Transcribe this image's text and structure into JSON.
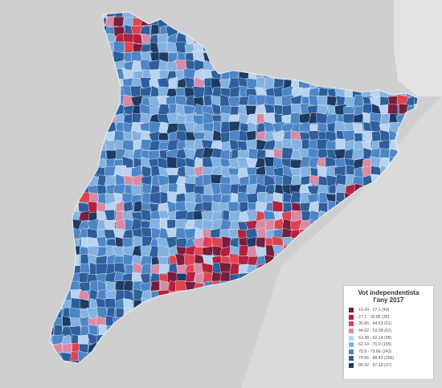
{
  "map": {
    "background_color": "#d9d9d9",
    "sea_color": "#dadada",
    "land_outline_color": "#ffffff"
  },
  "legend": {
    "title_line1": "Vot independentista",
    "title_line2": "l'any 2017",
    "items": [
      {
        "label": "10.34 - 27.1 (43)",
        "color": "#7a1e3d"
      },
      {
        "label": "27.1 - 35.86 (35)",
        "color": "#b5203f"
      },
      {
        "label": "35.86 - 44.62 (51)",
        "color": "#e0434f"
      },
      {
        "label": "44.62 - 53.38 (62)",
        "color": "#d88aa5"
      },
      {
        "label": "53.38 - 62.14 (98)",
        "color": "#b9d3ef"
      },
      {
        "label": "62.14 - 70.9 (155)",
        "color": "#84b2e0"
      },
      {
        "label": "70.9 - 79.66 (243)",
        "color": "#4d86c6"
      },
      {
        "label": "79.66 - 88.42 (256)",
        "color": "#2e5f9c"
      },
      {
        "label": "88.42 - 97.18 (37)",
        "color": "#1d3b63"
      }
    ]
  }
}
